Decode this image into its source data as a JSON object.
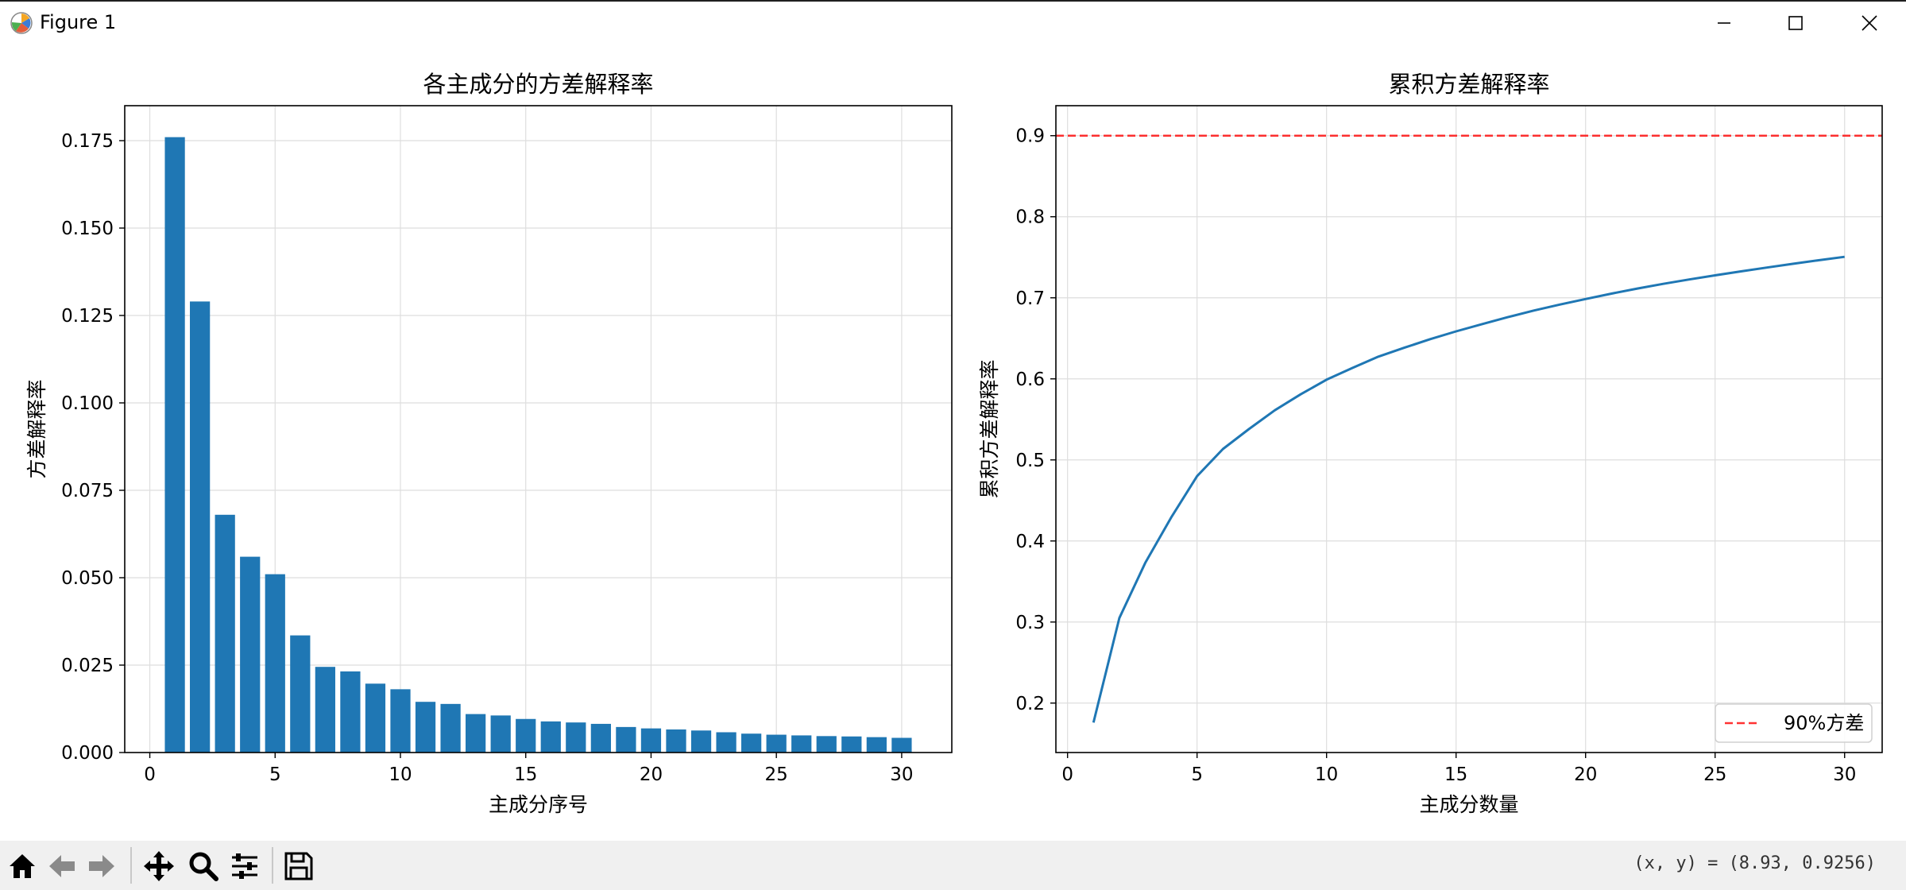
{
  "window": {
    "title": "Figure 1",
    "icon": "matplotlib-icon",
    "controls": [
      "minimize-icon",
      "maximize-icon",
      "close-icon"
    ]
  },
  "toolbar": {
    "buttons": [
      "home-icon",
      "back-icon",
      "forward-icon",
      "pan-icon",
      "zoom-icon",
      "configure-subplots-icon",
      "save-icon"
    ],
    "coords": "(x, y) = (8.93, 0.9256)"
  },
  "colors": {
    "bar": "#1f77b4",
    "line": "#1f77b4",
    "threshold": "#ff0000",
    "grid": "#dedede",
    "toolbar_bg": "#f0f0f0"
  },
  "chart_data": [
    {
      "type": "bar",
      "title": "各主成分的方差解释率",
      "xlabel": "主成分序号",
      "ylabel": "方差解释率",
      "x": [
        1,
        2,
        3,
        4,
        5,
        6,
        7,
        8,
        9,
        10,
        11,
        12,
        13,
        14,
        15,
        16,
        17,
        18,
        19,
        20,
        21,
        22,
        23,
        24,
        25,
        26,
        27,
        28,
        29,
        30
      ],
      "values": [
        0.176,
        0.129,
        0.068,
        0.056,
        0.051,
        0.0335,
        0.0245,
        0.0232,
        0.0197,
        0.0181,
        0.0145,
        0.0139,
        0.011,
        0.0106,
        0.0096,
        0.0089,
        0.0086,
        0.0082,
        0.0073,
        0.0069,
        0.0066,
        0.0063,
        0.0058,
        0.0054,
        0.0051,
        0.0049,
        0.0047,
        0.0046,
        0.0044,
        0.0042
      ],
      "xlim": [
        -1,
        32
      ],
      "ylim": [
        0,
        0.185
      ],
      "xticks": [
        0,
        5,
        10,
        15,
        20,
        25,
        30
      ],
      "yticks": [
        0.0,
        0.025,
        0.05,
        0.075,
        0.1,
        0.125,
        0.15,
        0.175
      ],
      "ytick_labels": [
        "0.000",
        "0.025",
        "0.050",
        "0.075",
        "0.100",
        "0.125",
        "0.150",
        "0.175"
      ],
      "grid": true
    },
    {
      "type": "line",
      "title": "累积方差解释率",
      "xlabel": "主成分数量",
      "ylabel": "累积方差解释率",
      "x": [
        1,
        2,
        3,
        4,
        5,
        6,
        7,
        8,
        9,
        10,
        11,
        12,
        13,
        14,
        15,
        16,
        17,
        18,
        19,
        20,
        21,
        22,
        23,
        24,
        25,
        26,
        27,
        28,
        29,
        30
      ],
      "values": [
        0.176,
        0.305,
        0.373,
        0.429,
        0.48,
        0.5135,
        0.538,
        0.5612,
        0.5809,
        0.599,
        0.6135,
        0.6274,
        0.6384,
        0.649,
        0.6586,
        0.6675,
        0.6761,
        0.6843,
        0.6916,
        0.6985,
        0.7051,
        0.7114,
        0.7172,
        0.7226,
        0.7277,
        0.7326,
        0.7373,
        0.7419,
        0.7463,
        0.7505
      ],
      "xlim": [
        -0.45,
        31.45
      ],
      "ylim": [
        0.139,
        0.937
      ],
      "xticks": [
        0,
        5,
        10,
        15,
        20,
        25,
        30
      ],
      "yticks": [
        0.2,
        0.3,
        0.4,
        0.5,
        0.6,
        0.7,
        0.8,
        0.9
      ],
      "ytick_labels": [
        "0.2",
        "0.3",
        "0.4",
        "0.5",
        "0.6",
        "0.7",
        "0.8",
        "0.9"
      ],
      "threshold": {
        "y": 0.9,
        "label": "90%方差",
        "style": "dashed"
      },
      "legend": "lower right",
      "grid": true
    }
  ]
}
